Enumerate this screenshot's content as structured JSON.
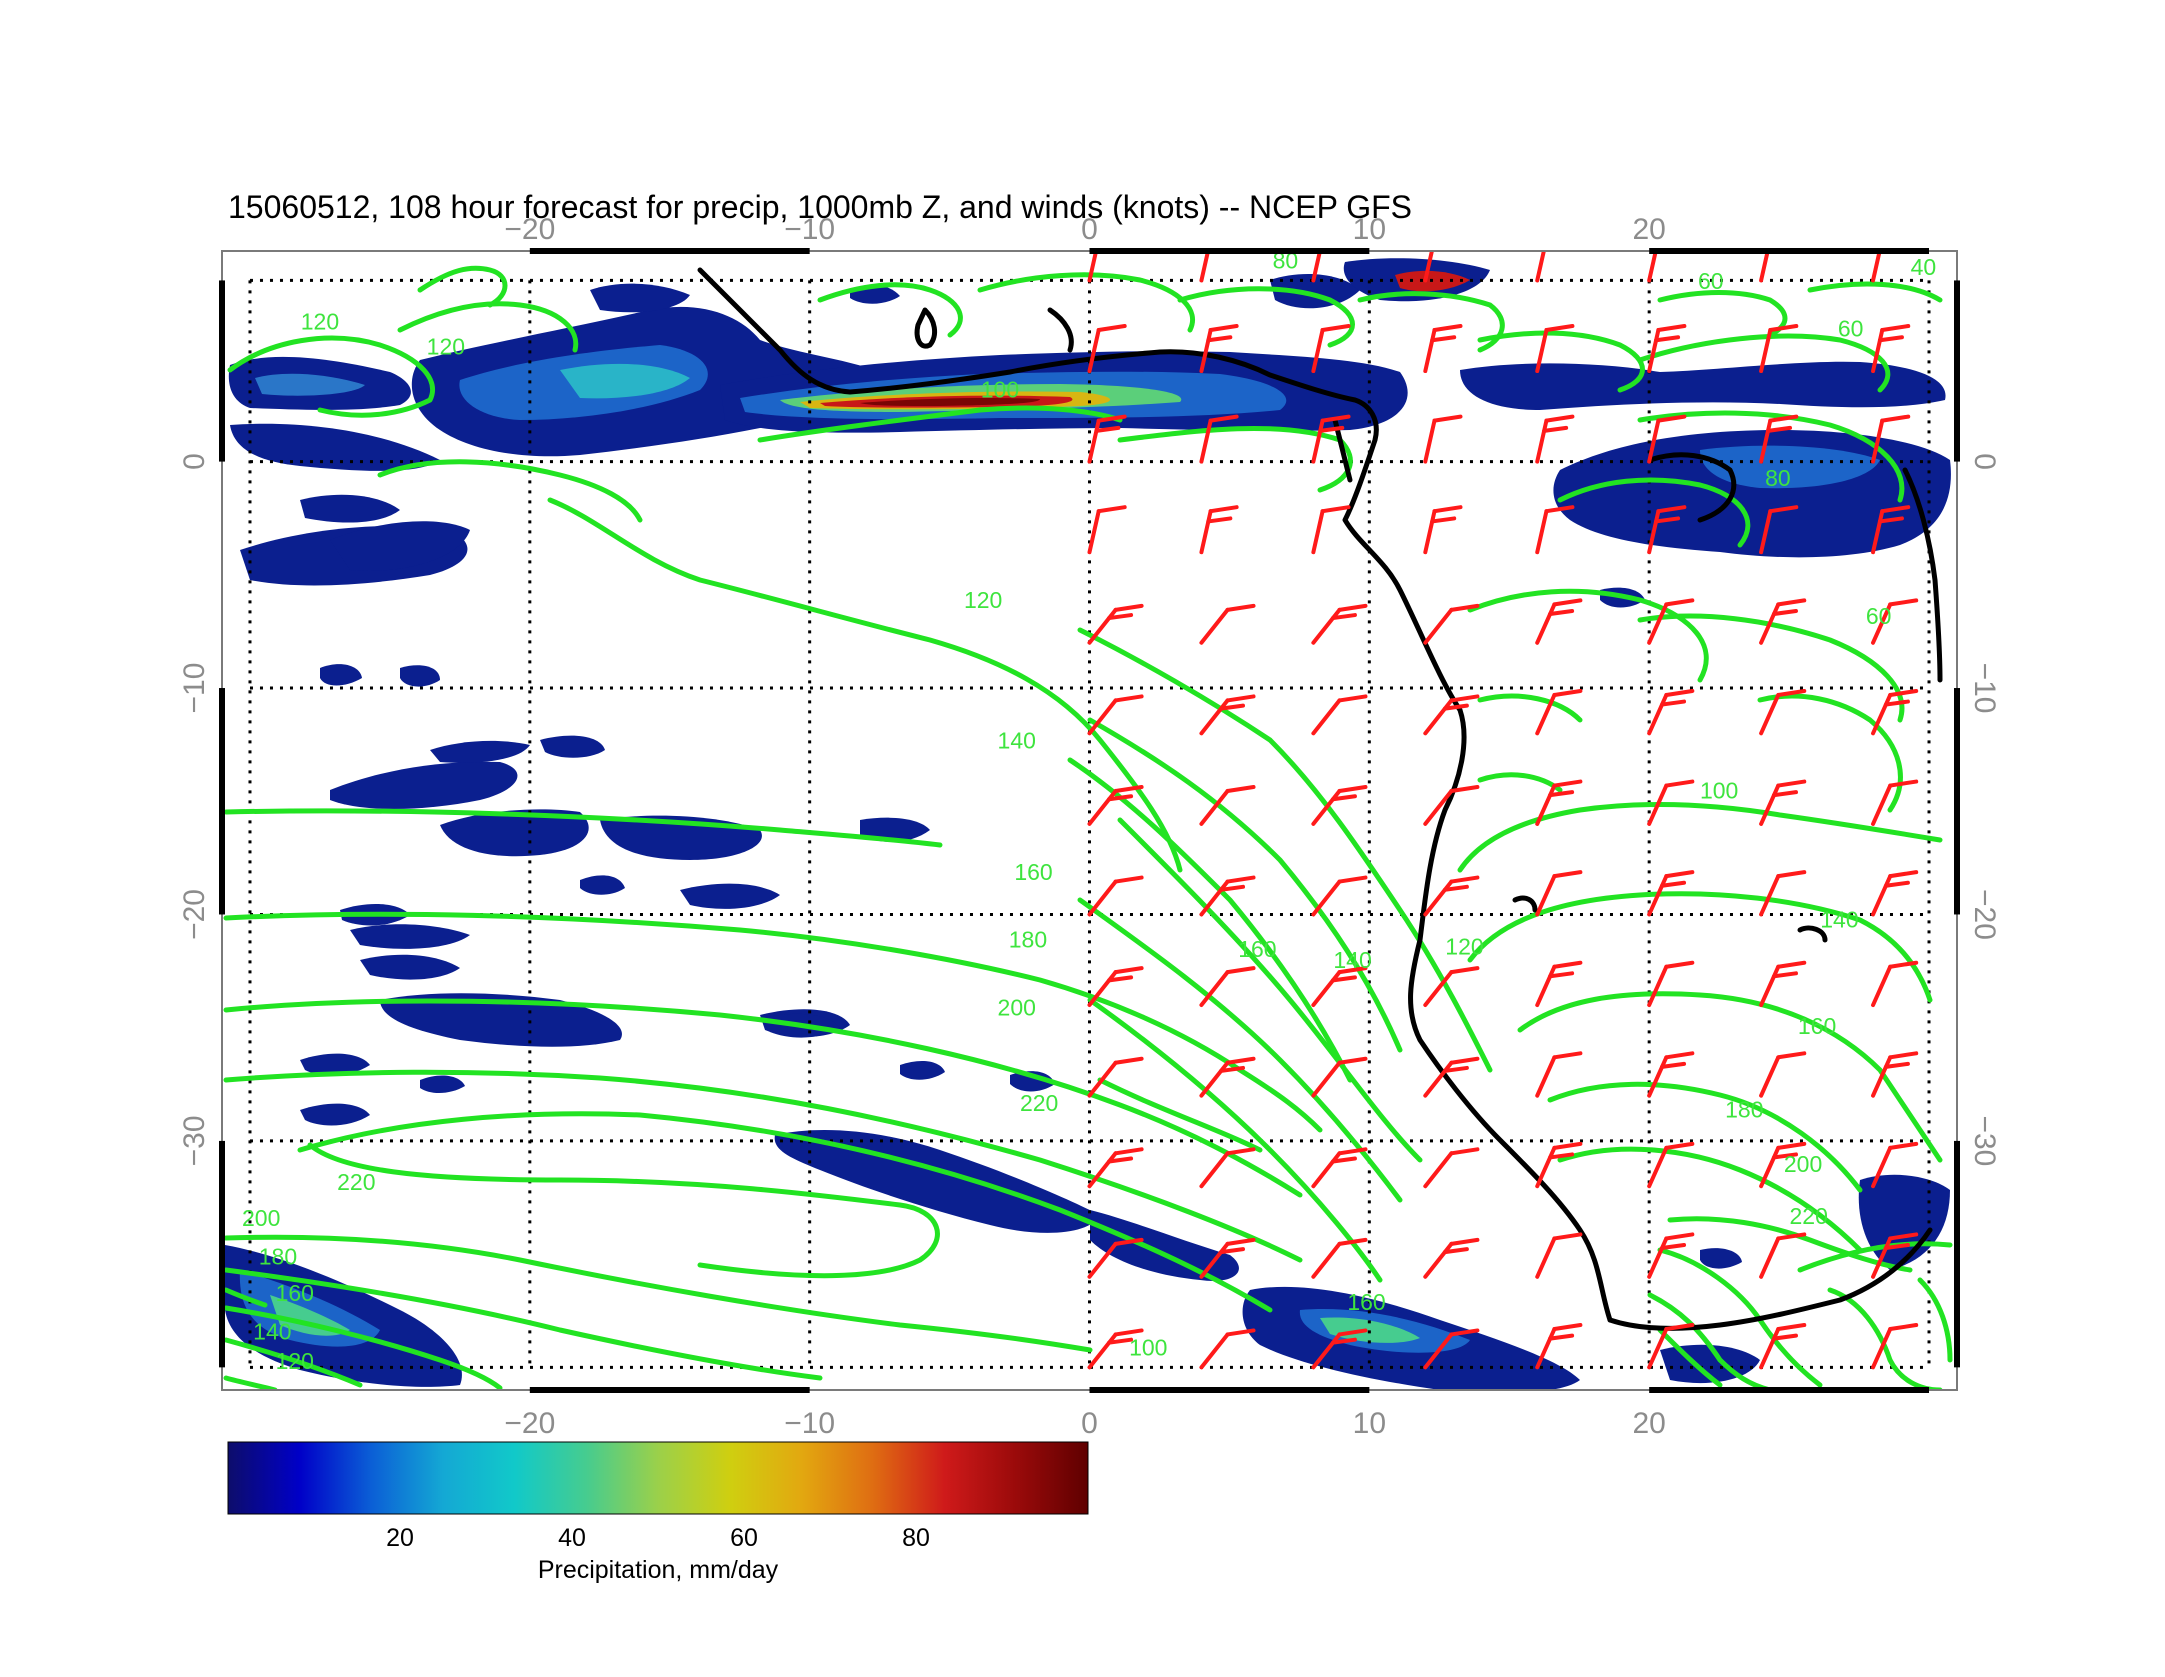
{
  "title": "15060512, 108 hour forecast for precip, 1000mb Z, and winds (knots) -- NCEP GFS",
  "map": {
    "lon_range": [
      -31,
      31
    ],
    "lat_range": [
      -41,
      9.3
    ],
    "lon_ticks": [
      {
        "value": -20,
        "label": "−20"
      },
      {
        "value": -10,
        "label": "−10"
      },
      {
        "value": 0,
        "label": "0"
      },
      {
        "value": 10,
        "label": "10"
      },
      {
        "value": 20,
        "label": "20"
      }
    ],
    "lat_ticks": [
      {
        "value": 0,
        "label": "0"
      },
      {
        "value": -10,
        "label": "−10"
      },
      {
        "value": -20,
        "label": "−20"
      },
      {
        "value": -30,
        "label": "−30"
      }
    ],
    "grid_lon": [
      -30,
      -20,
      -10,
      0,
      10,
      20,
      30
    ],
    "grid_lat": [
      8,
      0,
      -10,
      -20,
      -30,
      -40
    ],
    "contour_color": "#22e322",
    "barb_color": "#ff1a1a",
    "coast_color": "#000000",
    "contour_labels": [
      {
        "text": "120",
        "lon": -3.8,
        "lat": -6.2
      },
      {
        "text": "140",
        "lon": -2.6,
        "lat": -12.4
      },
      {
        "text": "160",
        "lon": -2.0,
        "lat": -18.2
      },
      {
        "text": "180",
        "lon": -2.2,
        "lat": -21.2
      },
      {
        "text": "200",
        "lon": -2.6,
        "lat": -24.2
      },
      {
        "text": "220",
        "lon": -1.8,
        "lat": -28.4
      },
      {
        "text": "220",
        "lon": -26.2,
        "lat": -31.9
      },
      {
        "text": "200",
        "lon": -29.6,
        "lat": -33.5
      },
      {
        "text": "180",
        "lon": -29.0,
        "lat": -35.2
      },
      {
        "text": "160",
        "lon": -28.4,
        "lat": -36.8
      },
      {
        "text": "140",
        "lon": -29.2,
        "lat": -38.5
      },
      {
        "text": "120",
        "lon": -28.4,
        "lat": -39.8
      },
      {
        "text": "120",
        "lon": -27.5,
        "lat": 6.1
      },
      {
        "text": "120",
        "lon": -23.0,
        "lat": 5.0
      },
      {
        "text": "100",
        "lon": -3.2,
        "lat": 3.1
      },
      {
        "text": "160",
        "lon": 6.0,
        "lat": -21.6
      },
      {
        "text": "140",
        "lon": 9.4,
        "lat": -22.1
      },
      {
        "text": "120",
        "lon": 13.4,
        "lat": -21.5
      },
      {
        "text": "100",
        "lon": 22.5,
        "lat": -14.6
      },
      {
        "text": "140",
        "lon": 26.8,
        "lat": -20.3
      },
      {
        "text": "160",
        "lon": 26.0,
        "lat": -25.0
      },
      {
        "text": "180",
        "lon": 23.4,
        "lat": -28.7
      },
      {
        "text": "200",
        "lon": 25.5,
        "lat": -31.1
      },
      {
        "text": "220",
        "lon": 25.7,
        "lat": -33.4
      },
      {
        "text": "160",
        "lon": 9.9,
        "lat": -37.2
      },
      {
        "text": "100",
        "lon": 2.1,
        "lat": -39.2
      },
      {
        "text": "60",
        "lon": 22.2,
        "lat": 7.9
      },
      {
        "text": "60",
        "lon": 27.2,
        "lat": 5.8
      },
      {
        "text": "40",
        "lon": 29.8,
        "lat": 8.5
      },
      {
        "text": "80",
        "lon": 7.0,
        "lat": 8.8
      },
      {
        "text": "80",
        "lon": 24.6,
        "lat": -0.8
      },
      {
        "text": "60",
        "lon": 28.2,
        "lat": -6.9
      }
    ]
  },
  "colorbar": {
    "label": "Precipitation, mm/day",
    "range": [
      0,
      100
    ],
    "ticks": [
      {
        "value": 20,
        "label": "20"
      },
      {
        "value": 40,
        "label": "40"
      },
      {
        "value": 60,
        "label": "60"
      },
      {
        "value": 80,
        "label": "80"
      }
    ],
    "stops": [
      "#0d0d6b",
      "#0000c8",
      "#0b5fd6",
      "#14a8d4",
      "#11c9c9",
      "#46cc8f",
      "#9bd04a",
      "#cfcf10",
      "#e2a810",
      "#df6d12",
      "#cf1a1a",
      "#9a0a0a",
      "#5f0000"
    ]
  }
}
